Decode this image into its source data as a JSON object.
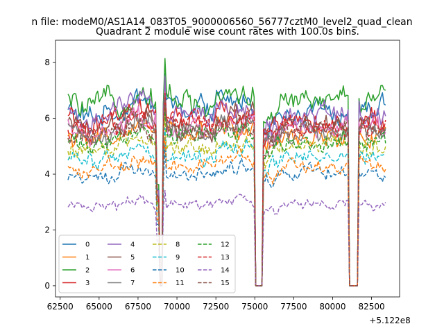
{
  "chart_data": {
    "type": "line",
    "suptitle": "n file: modeM0/AS1A14_083T05_9000006560_56777cztM0_level2_quad_clean",
    "title": "Quadrant 2 module wise count rates with 100.0s bins.",
    "xlabel": "",
    "ylabel": "",
    "x_offset_label": "+5.122e8",
    "x_range": [
      63000,
      83400
    ],
    "xlim": [
      62200,
      84300
    ],
    "ylim": [
      -0.4,
      8.8
    ],
    "xticks": [
      62500,
      65000,
      67500,
      70000,
      72500,
      75000,
      77500,
      80000,
      82500
    ],
    "yticks": [
      0,
      2,
      4,
      6,
      8
    ],
    "gaps": [
      [
        68850,
        69100
      ],
      [
        75050,
        75550
      ],
      [
        81000,
        81650
      ]
    ],
    "dips": [
      68950,
      75300,
      81320
    ],
    "spikes": [
      69200,
      75000
    ],
    "legend": {
      "location": "lower-left",
      "columns": 4
    },
    "series": [
      {
        "name": "0",
        "level": 6.3,
        "style": "solid",
        "color": "#1f77b4"
      },
      {
        "name": "1",
        "level": 5.4,
        "style": "solid",
        "color": "#ff7f0e"
      },
      {
        "name": "2",
        "level": 6.6,
        "style": "solid",
        "color": "#2ca02c"
      },
      {
        "name": "3",
        "level": 5.9,
        "style": "solid",
        "color": "#d62728"
      },
      {
        "name": "4",
        "level": 6.2,
        "style": "solid",
        "color": "#9467bd"
      },
      {
        "name": "5",
        "level": 5.8,
        "style": "solid",
        "color": "#8c564b"
      },
      {
        "name": "6",
        "level": 5.6,
        "style": "solid",
        "color": "#e377c2"
      },
      {
        "name": "7",
        "level": 5.5,
        "style": "solid",
        "color": "#7f7f7f"
      },
      {
        "name": "8",
        "level": 5.0,
        "style": "dashed",
        "color": "#bcbd22"
      },
      {
        "name": "9",
        "level": 4.7,
        "style": "dashed",
        "color": "#17becf"
      },
      {
        "name": "10",
        "level": 4.0,
        "style": "dashed",
        "color": "#1f77b4"
      },
      {
        "name": "11",
        "level": 4.3,
        "style": "dashed",
        "color": "#ff7f0e"
      },
      {
        "name": "12",
        "level": 5.2,
        "style": "dashed",
        "color": "#2ca02c"
      },
      {
        "name": "13",
        "level": 5.7,
        "style": "dashed",
        "color": "#d62728"
      },
      {
        "name": "14",
        "level": 2.9,
        "style": "dashed",
        "color": "#9467bd"
      },
      {
        "name": "15",
        "level": 5.5,
        "style": "dashed",
        "color": "#8c564b"
      }
    ]
  }
}
